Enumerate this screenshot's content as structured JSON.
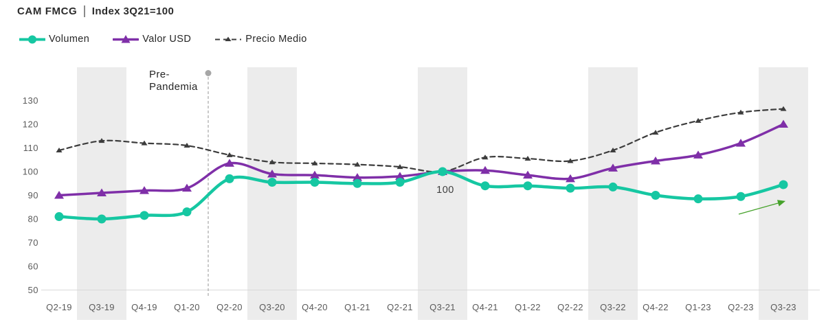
{
  "header": {
    "title_left": "CAM FMCG",
    "title_right": "Index 3Q21=100"
  },
  "legend": [
    {
      "label": "Volumen",
      "icon": "teal-line-circle-icon",
      "color": "#16C7A2"
    },
    {
      "label": "Valor USD",
      "icon": "purple-line-triangle-icon",
      "color": "#7F2FA8"
    },
    {
      "label": "Precio Medio",
      "icon": "dashed-line-triangle-icon",
      "color": "#3C3C3C"
    }
  ],
  "chart_data": {
    "type": "line",
    "title": "CAM FMCG | Index 3Q21=100",
    "categories": [
      "Q2-19",
      "Q3-19",
      "Q4-19",
      "Q1-20",
      "Q2-20",
      "Q3-20",
      "Q4-20",
      "Q1-21",
      "Q2-21",
      "Q3-21",
      "Q4-21",
      "Q1-22",
      "Q2-22",
      "Q3-22",
      "Q4-22",
      "Q1-23",
      "Q2-23",
      "Q3-23"
    ],
    "series": [
      {
        "name": "Precio Medio",
        "style": "dashed",
        "marker": "small-triangle",
        "color": "#3C3C3C",
        "values": [
          109,
          113,
          112,
          111,
          107,
          104,
          103.5,
          103,
          102,
          100,
          106,
          105.5,
          104.5,
          109,
          116.5,
          121.5,
          125,
          126.5
        ]
      },
      {
        "name": "Valor USD",
        "style": "solid",
        "marker": "triangle",
        "color": "#7F2FA8",
        "values": [
          90,
          91,
          92,
          93,
          103.5,
          99,
          98.5,
          97.5,
          98,
          100,
          100.5,
          98.5,
          97,
          101.5,
          104.5,
          107,
          112,
          120
        ]
      },
      {
        "name": "Volumen",
        "style": "solid",
        "marker": "circle",
        "color": "#16C7A2",
        "values": [
          81,
          80,
          81.5,
          83,
          97,
          95.5,
          95.5,
          95,
          95.5,
          100,
          94,
          94,
          93,
          93.5,
          90,
          88.5,
          89.5,
          94.5
        ]
      }
    ],
    "yticks": [
      50,
      60,
      70,
      80,
      90,
      100,
      110,
      120,
      130
    ],
    "ylim": [
      50,
      143
    ],
    "grid": false,
    "legend_position": "top-left",
    "axis_label_color": "#5A5A5A",
    "axis_line_color": "#D9D9D9",
    "highlighted_categories": [
      "Q3-19",
      "Q3-20",
      "Q3-21",
      "Q3-22",
      "Q3-23"
    ],
    "highlight_color": "#ECECEC",
    "annotations": {
      "pre_pandemia": {
        "line1": "Pre-",
        "line2": "Pandemia",
        "between": [
          "Q1-20",
          "Q2-20"
        ],
        "color": "#A6A6A6",
        "text_color": "#262626"
      },
      "index_label": {
        "text": "100",
        "category": "Q3-21",
        "color": "#3F3F3F"
      },
      "trend_arrow": {
        "color": "#46A22B",
        "near_categories": [
          "Q2-23",
          "Q3-23"
        ]
      }
    }
  }
}
